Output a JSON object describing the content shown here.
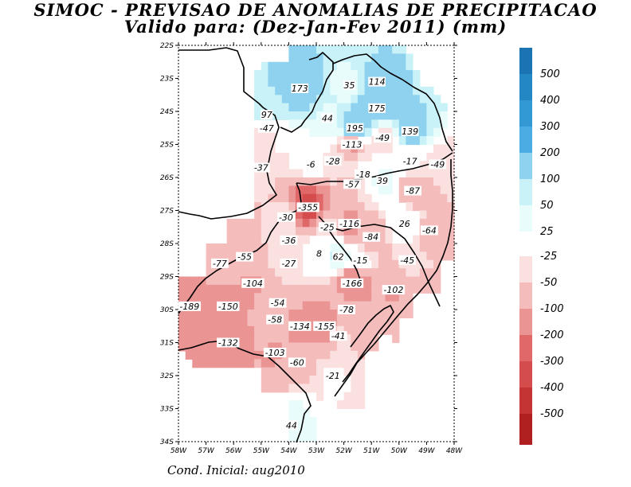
{
  "title": {
    "line1": "SIMOC - PREVISAO DE ANOMALIAS DE PRECIPITACAO",
    "line2": "Valido para: (Dez-Jan-Fev 2011) (mm)"
  },
  "footer": "Cond. Inicial: aug2010",
  "axes": {
    "lat_ticks": [
      "22S",
      "23S",
      "24S",
      "25S",
      "26S",
      "27S",
      "28S",
      "29S",
      "30S",
      "31S",
      "32S",
      "33S",
      "34S"
    ],
    "lon_ticks": [
      "58W",
      "57W",
      "56W",
      "55W",
      "54W",
      "53W",
      "52W",
      "51W",
      "50W",
      "49W",
      "48W"
    ],
    "lon_range": [
      -58,
      -48
    ],
    "lat_range": [
      -34,
      -22
    ]
  },
  "legend": {
    "positive": [
      {
        "label": "500",
        "color": "#1a74b4"
      },
      {
        "label": "400",
        "color": "#2287c4"
      },
      {
        "label": "300",
        "color": "#3399d4"
      },
      {
        "label": "200",
        "color": "#4aacE2"
      },
      {
        "label": "100",
        "color": "#8fd2f0"
      },
      {
        "label": "50",
        "color": "#c8f2f8"
      },
      {
        "label": "25",
        "color": "#e8fcfc"
      }
    ],
    "negative": [
      {
        "label": "-25",
        "color": "#fbe0e0"
      },
      {
        "label": "-50",
        "color": "#f5bcbc"
      },
      {
        "label": "-100",
        "color": "#eb9494"
      },
      {
        "label": "-200",
        "color": "#e06868"
      },
      {
        "label": "-300",
        "color": "#d44c4c"
      },
      {
        "label": "-400",
        "color": "#c43434"
      },
      {
        "label": "-500",
        "color": "#b02020"
      }
    ],
    "top_color": "#1a74b4",
    "bottom_color": "#b02020"
  },
  "map_labels": [
    {
      "text": "173",
      "lon": -53.6,
      "lat": -23.3
    },
    {
      "text": "35",
      "lon": -51.8,
      "lat": -23.2
    },
    {
      "text": "114",
      "lon": -50.8,
      "lat": -23.1
    },
    {
      "text": "175",
      "lon": -50.8,
      "lat": -23.9
    },
    {
      "text": "97",
      "lon": -54.8,
      "lat": -24.1
    },
    {
      "text": "44",
      "lon": -52.6,
      "lat": -24.2
    },
    {
      "text": "-47",
      "lon": -54.8,
      "lat": -24.5
    },
    {
      "text": "195",
      "lon": -51.6,
      "lat": -24.5
    },
    {
      "text": "139",
      "lon": -49.6,
      "lat": -24.6
    },
    {
      "text": "-49",
      "lon": -50.6,
      "lat": -24.8
    },
    {
      "text": "-113",
      "lon": -51.7,
      "lat": -25.0
    },
    {
      "text": "-37",
      "lon": -55.0,
      "lat": -25.7
    },
    {
      "text": "-6",
      "lon": -53.2,
      "lat": -25.6
    },
    {
      "text": "-28",
      "lon": -52.4,
      "lat": -25.5
    },
    {
      "text": "-17",
      "lon": -49.6,
      "lat": -25.5
    },
    {
      "text": "-49",
      "lon": -48.6,
      "lat": -25.6
    },
    {
      "text": "-18",
      "lon": -51.3,
      "lat": -25.9
    },
    {
      "text": "39",
      "lon": -50.6,
      "lat": -26.1
    },
    {
      "text": "-57",
      "lon": -51.7,
      "lat": -26.2
    },
    {
      "text": "-87",
      "lon": -49.5,
      "lat": -26.4
    },
    {
      "text": "-355",
      "lon": -53.3,
      "lat": -26.9
    },
    {
      "text": "-30",
      "lon": -54.1,
      "lat": -27.2
    },
    {
      "text": "-116",
      "lon": -51.8,
      "lat": -27.4
    },
    {
      "text": "-25",
      "lon": -52.6,
      "lat": -27.5
    },
    {
      "text": "26",
      "lon": -49.8,
      "lat": -27.4
    },
    {
      "text": "-84",
      "lon": -51.0,
      "lat": -27.8
    },
    {
      "text": "-64",
      "lon": -48.9,
      "lat": -27.6
    },
    {
      "text": "-36",
      "lon": -54.0,
      "lat": -27.9
    },
    {
      "text": "8",
      "lon": -52.9,
      "lat": -28.3
    },
    {
      "text": "62",
      "lon": -52.2,
      "lat": -28.4
    },
    {
      "text": "-15",
      "lon": -51.4,
      "lat": -28.5
    },
    {
      "text": "-45",
      "lon": -49.7,
      "lat": -28.5
    },
    {
      "text": "-55",
      "lon": -55.6,
      "lat": -28.4
    },
    {
      "text": "-27",
      "lon": -54.0,
      "lat": -28.6
    },
    {
      "text": "-77",
      "lon": -56.5,
      "lat": -28.6
    },
    {
      "text": "-104",
      "lon": -55.3,
      "lat": -29.2
    },
    {
      "text": "-166",
      "lon": -51.7,
      "lat": -29.2
    },
    {
      "text": "-102",
      "lon": -50.2,
      "lat": -29.4
    },
    {
      "text": "-54",
      "lon": -54.4,
      "lat": -29.8
    },
    {
      "text": "-189",
      "lon": -57.6,
      "lat": -29.9
    },
    {
      "text": "-150",
      "lon": -56.2,
      "lat": -29.9
    },
    {
      "text": "-78",
      "lon": -51.9,
      "lat": -30.0
    },
    {
      "text": "-58",
      "lon": -54.5,
      "lat": -30.3
    },
    {
      "text": "-134",
      "lon": -53.6,
      "lat": -30.5
    },
    {
      "text": "-155",
      "lon": -52.7,
      "lat": -30.5
    },
    {
      "text": "-41",
      "lon": -52.2,
      "lat": -30.8
    },
    {
      "text": "-132",
      "lon": -56.2,
      "lat": -31.0
    },
    {
      "text": "-103",
      "lon": -54.5,
      "lat": -31.3
    },
    {
      "text": "-60",
      "lon": -53.7,
      "lat": -31.6
    },
    {
      "text": "-21",
      "lon": -52.4,
      "lat": -32.0
    },
    {
      "text": "44",
      "lon": -53.9,
      "lat": -33.5
    }
  ]
}
